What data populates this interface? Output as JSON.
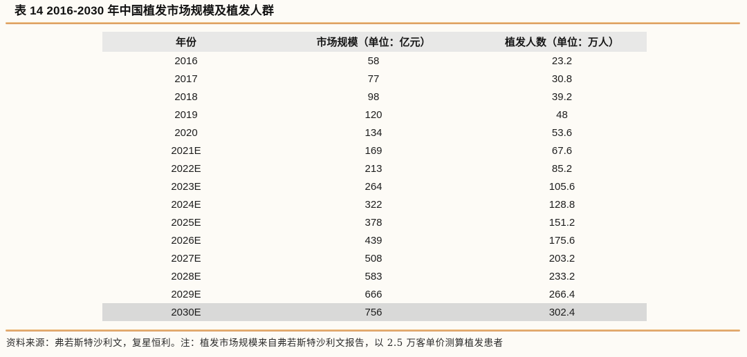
{
  "doc": {
    "title": "表 14 2016-2030 年中国植发市场规模及植发人群",
    "source_note": "资料来源：弗若斯特沙利文，复星恒利。注：植发市场规模来自弗若斯特沙利文报告，以 2.5 万客单价测算植发患者"
  },
  "colors": {
    "page_bg": "#fdfbf6",
    "accent_top": "#f3cd97",
    "accent_bottom": "#d28c4c",
    "header_bg": "#e8e8e7",
    "highlight_row_bg": "#d9d9d8",
    "text": "#1c1c1c"
  },
  "chart_data": {
    "type": "table",
    "title": "表 14 2016-2030 年中国植发市场规模及植发人群",
    "columns": [
      "年份",
      "市场规模（单位：亿元）",
      "植发人数（单位：万人）"
    ],
    "rows": [
      [
        "2016",
        "58",
        "23.2"
      ],
      [
        "2017",
        "77",
        "30.8"
      ],
      [
        "2018",
        "98",
        "39.2"
      ],
      [
        "2019",
        "120",
        "48"
      ],
      [
        "2020",
        "134",
        "53.6"
      ],
      [
        "2021E",
        "169",
        "67.6"
      ],
      [
        "2022E",
        "213",
        "85.2"
      ],
      [
        "2023E",
        "264",
        "105.6"
      ],
      [
        "2024E",
        "322",
        "128.8"
      ],
      [
        "2025E",
        "378",
        "151.2"
      ],
      [
        "2026E",
        "439",
        "175.6"
      ],
      [
        "2027E",
        "508",
        "203.2"
      ],
      [
        "2028E",
        "583",
        "233.2"
      ],
      [
        "2029E",
        "666",
        "266.4"
      ],
      [
        "2030E",
        "756",
        "302.4"
      ]
    ],
    "highlighted_row": "2030E"
  }
}
